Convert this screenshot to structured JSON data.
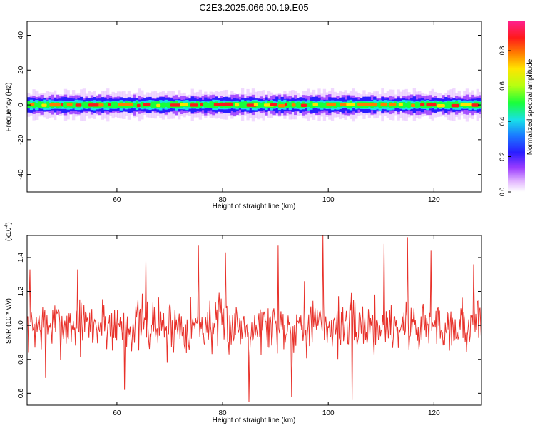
{
  "title": "C2E3.2025.066.00.19.E05",
  "colors": {
    "snr_line": "#e8312a",
    "colormap": [
      "#ffffff",
      "#e3b8ff",
      "#9b3cff",
      "#2a1dff",
      "#1a7bff",
      "#18e0e8",
      "#19ff3a",
      "#b7ff11",
      "#ffe400",
      "#ff7e00",
      "#ff1a1a",
      "#ff2090"
    ]
  },
  "chart_data": [
    {
      "type": "heatmap",
      "name": "spectrogram",
      "xlabel": "Height of straight line (km)",
      "ylabel": "Frequency (Hz)",
      "xlim": [
        43,
        129
      ],
      "ylim": [
        -50,
        48
      ],
      "xticks": [
        60,
        80,
        100,
        120
      ],
      "yticks": [
        -40,
        -20,
        0,
        20,
        40
      ],
      "description_band": {
        "center_hz": 0,
        "halfwidth_hz": 4
      },
      "colorbar": {
        "label": "Normalized spectral amplitude",
        "range": [
          0,
          0.97
        ],
        "ticks": [
          0.0,
          0.2,
          0.4,
          0.6,
          0.8
        ]
      }
    },
    {
      "type": "line",
      "name": "snr",
      "xlabel": "Height of straight line (km)",
      "ylabel": "SNR (10 * v/v)",
      "multiplier_label": "(x10",
      "multiplier_exp": "4",
      "multiplier_close": ")",
      "xlim": [
        43,
        129
      ],
      "ylim": [
        0.53,
        1.53
      ],
      "xticks": [
        60,
        80,
        100,
        120
      ],
      "yticks": [
        0.6,
        0.8,
        1.0,
        1.2,
        1.4
      ],
      "ytick_labels": [
        "0.6",
        "0.8",
        "1.0",
        "1.2",
        "1.4"
      ],
      "series": [
        {
          "seed": 7,
          "n_points": 640,
          "mean": 1.0,
          "spread": 0.17,
          "x": [
            43.5,
            46.5,
            52.5,
            57.5,
            61.5,
            65.5,
            69.5,
            75.5,
            80.5,
            85.0,
            90.5,
            93.0,
            95.5,
            99.0,
            104.5,
            110.5,
            115.0,
            119.5,
            127.5
          ],
          "y": [
            1.33,
            0.69,
            1.33,
            1.12,
            0.62,
            1.38,
            0.78,
            1.47,
            1.43,
            0.55,
            1.47,
            0.58,
            1.26,
            1.53,
            0.56,
            1.48,
            1.52,
            1.44,
            1.36
          ]
        }
      ]
    }
  ]
}
